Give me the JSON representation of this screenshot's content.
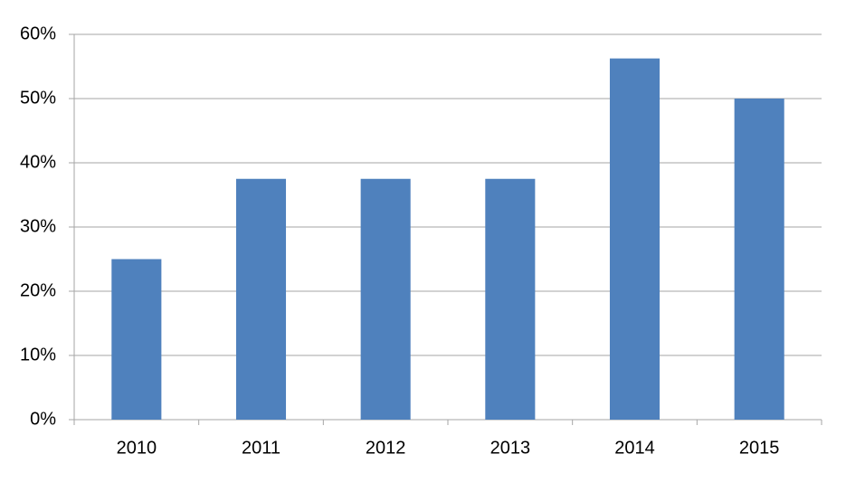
{
  "chart_data": {
    "type": "bar",
    "categories": [
      "2010",
      "2011",
      "2012",
      "2013",
      "2014",
      "2015"
    ],
    "values": [
      25,
      37.5,
      37.5,
      37.5,
      56.25,
      50
    ],
    "color": "#4f81bd",
    "ylim": [
      0,
      60
    ],
    "yticks": [
      {
        "value": 0,
        "label": "0%"
      },
      {
        "value": 10,
        "label": "10%"
      },
      {
        "value": 20,
        "label": "20%"
      },
      {
        "value": 30,
        "label": "30%"
      },
      {
        "value": 40,
        "label": "40%"
      },
      {
        "value": 50,
        "label": "50%"
      },
      {
        "value": 60,
        "label": "60%"
      }
    ],
    "grid": true
  }
}
